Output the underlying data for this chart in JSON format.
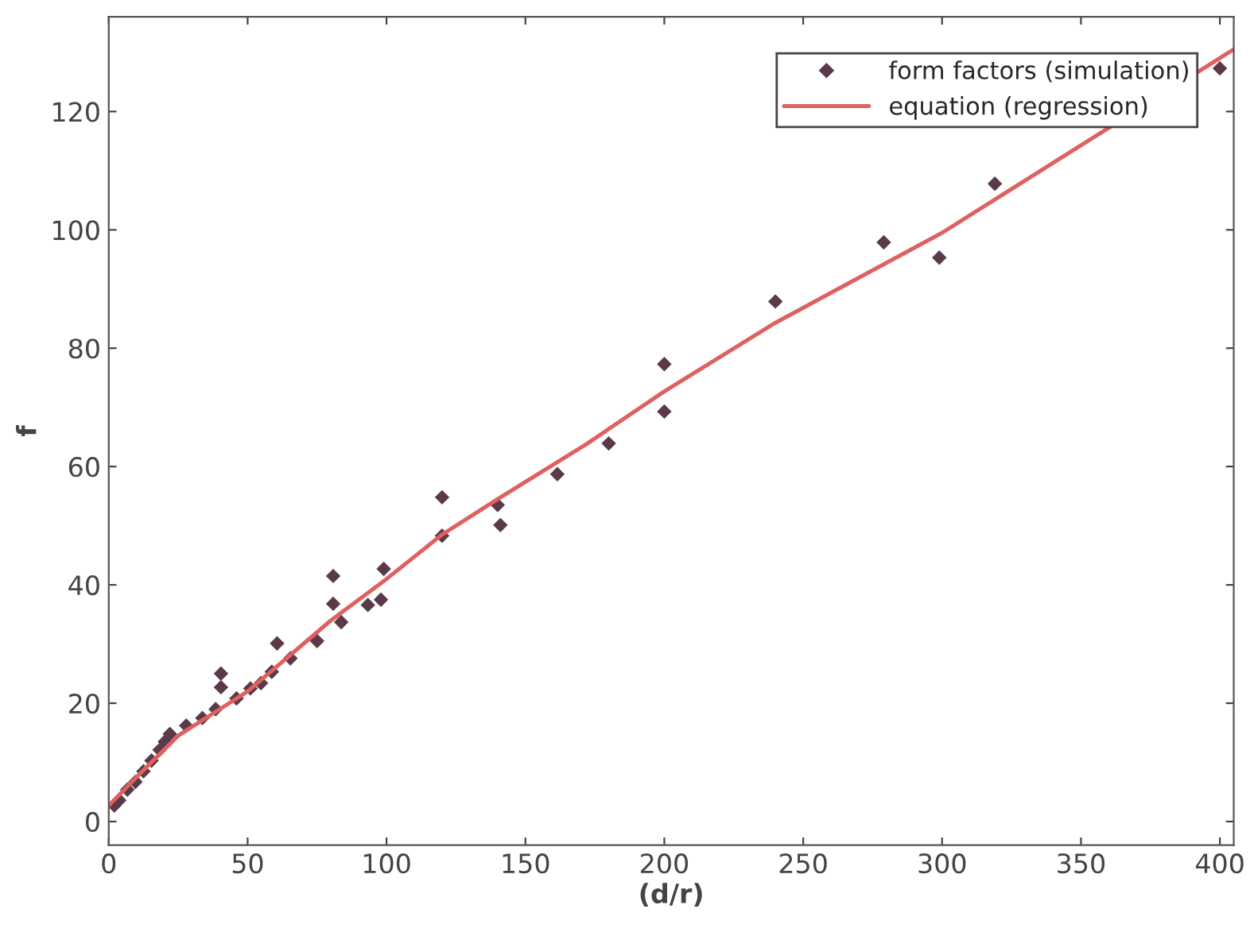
{
  "chart_data": {
    "type": "scatter",
    "xlabel": "(d/r)",
    "ylabel": "f",
    "xlim": [
      0,
      405
    ],
    "ylim": [
      -4,
      136
    ],
    "xticks": [
      0,
      50,
      100,
      150,
      200,
      250,
      300,
      350,
      400
    ],
    "yticks": [
      0,
      20,
      40,
      60,
      80,
      100,
      120
    ],
    "grid": false,
    "legend": "top right",
    "series": [
      {
        "name": "form factors (simulation)",
        "marker": "diamond",
        "color": "#5a3a4a",
        "x": [
          2,
          3.8,
          6.7,
          9.6,
          12.5,
          15.4,
          18.3,
          20.2,
          22,
          27.9,
          33.7,
          38.5,
          40.4,
          40.4,
          46,
          51,
          54.8,
          58.7,
          60.6,
          65.4,
          75,
          80.8,
          80.8,
          83.7,
          93.3,
          98,
          99,
          120,
          120,
          140,
          141,
          161.5,
          180,
          200,
          200,
          240,
          279,
          299,
          319,
          400
        ],
        "values": [
          2.7,
          3.6,
          5.4,
          6.7,
          8.5,
          10.3,
          12.1,
          13.5,
          14.8,
          16.2,
          17.5,
          19,
          22.7,
          25,
          20.8,
          22.5,
          23.4,
          25.3,
          30.1,
          27.6,
          30.5,
          36.8,
          41.5,
          33.7,
          36.6,
          37.5,
          42.7,
          48.3,
          54.8,
          53.5,
          50.1,
          58.7,
          63.9,
          69.3,
          77.3,
          87.9,
          97.9,
          95.3,
          107.8,
          127.3
        ]
      },
      {
        "name": "equation (regression)",
        "type": "line",
        "marker": "none",
        "line_style": "solid",
        "color": "#e06060",
        "x": [
          0,
          10,
          25,
          50,
          80,
          100,
          120,
          140,
          172,
          200,
          240,
          300,
          350,
          405
        ],
        "values": [
          2.7,
          7.5,
          14.5,
          22,
          34,
          41,
          48.5,
          54.5,
          63.8,
          72.7,
          84.3,
          99.5,
          114.3,
          130.5
        ]
      }
    ]
  }
}
